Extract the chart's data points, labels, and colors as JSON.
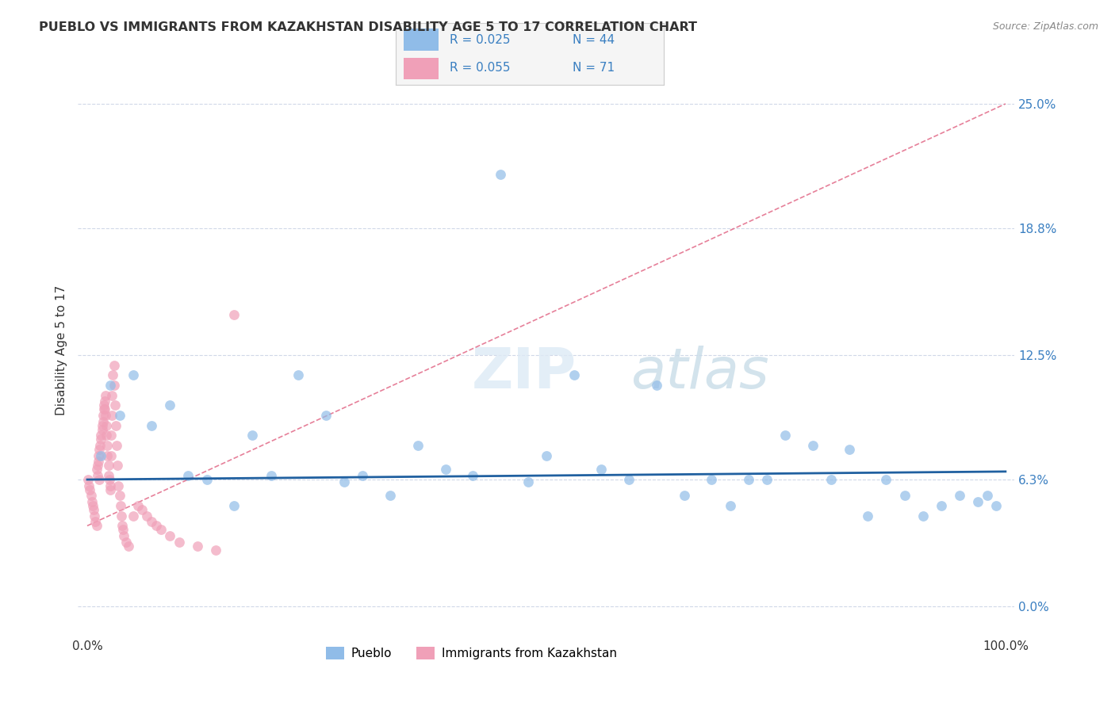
{
  "title": "PUEBLO VS IMMIGRANTS FROM KAZAKHSTAN DISABILITY AGE 5 TO 17 CORRELATION CHART",
  "source": "Source: ZipAtlas.com",
  "ylabel": "Disability Age 5 to 17",
  "ytick_values": [
    0.0,
    6.3,
    12.5,
    18.8,
    25.0
  ],
  "xmin": 0.0,
  "xmax": 100.0,
  "ymin": -1.5,
  "ymax": 27.0,
  "legend_label1": "Pueblo",
  "legend_label2": "Immigrants from Kazakhstan",
  "color_blue": "#90bce8",
  "color_pink": "#f0a0b8",
  "color_trend_blue": "#2060a0",
  "color_trend_pink": "#e06080",
  "R1": 0.025,
  "N1": 44,
  "R2": 0.055,
  "N2": 71,
  "pueblo_x": [
    1.5,
    2.5,
    3.5,
    5.0,
    7.0,
    9.0,
    11.0,
    13.0,
    16.0,
    18.0,
    20.0,
    23.0,
    26.0,
    28.0,
    30.0,
    33.0,
    36.0,
    39.0,
    42.0,
    45.0,
    48.0,
    50.0,
    53.0,
    56.0,
    59.0,
    62.0,
    65.0,
    68.0,
    70.0,
    72.0,
    74.0,
    76.0,
    79.0,
    81.0,
    83.0,
    85.0,
    87.0,
    89.0,
    91.0,
    93.0,
    95.0,
    97.0,
    98.0,
    99.0
  ],
  "pueblo_y": [
    7.5,
    11.0,
    9.5,
    11.5,
    9.0,
    10.0,
    6.5,
    6.3,
    5.0,
    8.5,
    6.5,
    11.5,
    9.5,
    6.2,
    6.5,
    5.5,
    8.0,
    6.8,
    6.5,
    21.5,
    6.2,
    7.5,
    11.5,
    6.8,
    6.3,
    11.0,
    5.5,
    6.3,
    5.0,
    6.3,
    6.3,
    8.5,
    8.0,
    6.3,
    7.8,
    4.5,
    6.3,
    5.5,
    4.5,
    5.0,
    5.5,
    5.2,
    5.5,
    5.0
  ],
  "kazakh_x": [
    0.1,
    0.2,
    0.3,
    0.4,
    0.5,
    0.6,
    0.7,
    0.8,
    0.9,
    1.0,
    1.0,
    1.1,
    1.1,
    1.2,
    1.2,
    1.3,
    1.3,
    1.4,
    1.5,
    1.5,
    1.6,
    1.6,
    1.7,
    1.7,
    1.8,
    1.8,
    1.9,
    1.9,
    2.0,
    2.0,
    2.1,
    2.1,
    2.2,
    2.2,
    2.3,
    2.3,
    2.4,
    2.5,
    2.5,
    2.6,
    2.6,
    2.7,
    2.7,
    2.8,
    2.9,
    2.9,
    3.0,
    3.1,
    3.2,
    3.3,
    3.4,
    3.5,
    3.6,
    3.7,
    3.8,
    3.9,
    4.0,
    4.2,
    4.5,
    5.0,
    5.5,
    6.0,
    6.5,
    7.0,
    7.5,
    8.0,
    9.0,
    10.0,
    12.0,
    14.0,
    16.0
  ],
  "kazakh_y": [
    6.3,
    6.0,
    5.8,
    5.5,
    5.2,
    5.0,
    4.8,
    4.5,
    4.2,
    4.0,
    6.8,
    6.5,
    7.0,
    7.2,
    7.5,
    7.8,
    6.3,
    8.0,
    8.3,
    8.5,
    8.8,
    9.0,
    9.2,
    9.5,
    9.8,
    10.0,
    10.2,
    9.8,
    10.5,
    9.5,
    9.0,
    8.5,
    8.0,
    7.5,
    7.0,
    6.5,
    6.3,
    6.0,
    5.8,
    7.5,
    8.5,
    9.5,
    10.5,
    11.5,
    12.0,
    11.0,
    10.0,
    9.0,
    8.0,
    7.0,
    6.0,
    5.5,
    5.0,
    4.5,
    4.0,
    3.8,
    3.5,
    3.2,
    3.0,
    4.5,
    5.0,
    4.8,
    4.5,
    4.2,
    4.0,
    3.8,
    3.5,
    3.2,
    3.0,
    2.8,
    14.5
  ]
}
